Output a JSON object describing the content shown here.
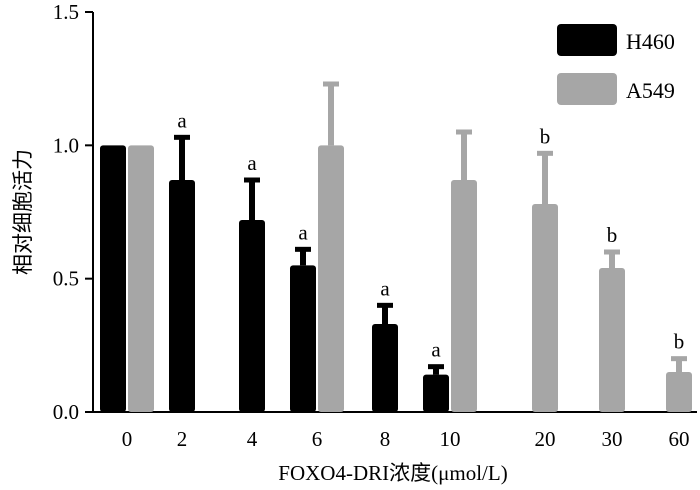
{
  "chart_data": {
    "type": "bar",
    "title": "",
    "xlabel": "FOXO4-DRI浓度(μmol/L)",
    "ylabel": "相对细胞活力",
    "ylim": [
      0,
      1.5
    ],
    "yticks": [
      "0.0",
      "0.5",
      "1.0",
      "1.5"
    ],
    "categories": [
      "0",
      "2",
      "4",
      "6",
      "8",
      "10",
      "20",
      "30",
      "60"
    ],
    "legend_position": "top-right",
    "grid": false,
    "series": [
      {
        "name": "H460",
        "color": "#000000",
        "values": [
          1.0,
          0.87,
          0.72,
          0.55,
          0.33,
          0.14,
          null,
          null,
          null
        ],
        "errors": [
          0,
          0.16,
          0.15,
          0.06,
          0.07,
          0.03,
          null,
          null,
          null
        ],
        "labels": [
          "",
          "a",
          "a",
          "a",
          "a",
          "a",
          "",
          "",
          ""
        ]
      },
      {
        "name": "A549",
        "color": "#a6a6a6",
        "values": [
          1.0,
          null,
          null,
          1.0,
          null,
          0.87,
          0.78,
          0.54,
          0.15
        ],
        "errors": [
          0,
          null,
          null,
          0.23,
          null,
          0.18,
          0.19,
          0.06,
          0.05
        ],
        "labels": [
          "",
          "",
          "",
          "",
          "",
          "",
          "b",
          "b",
          "b"
        ]
      }
    ]
  }
}
